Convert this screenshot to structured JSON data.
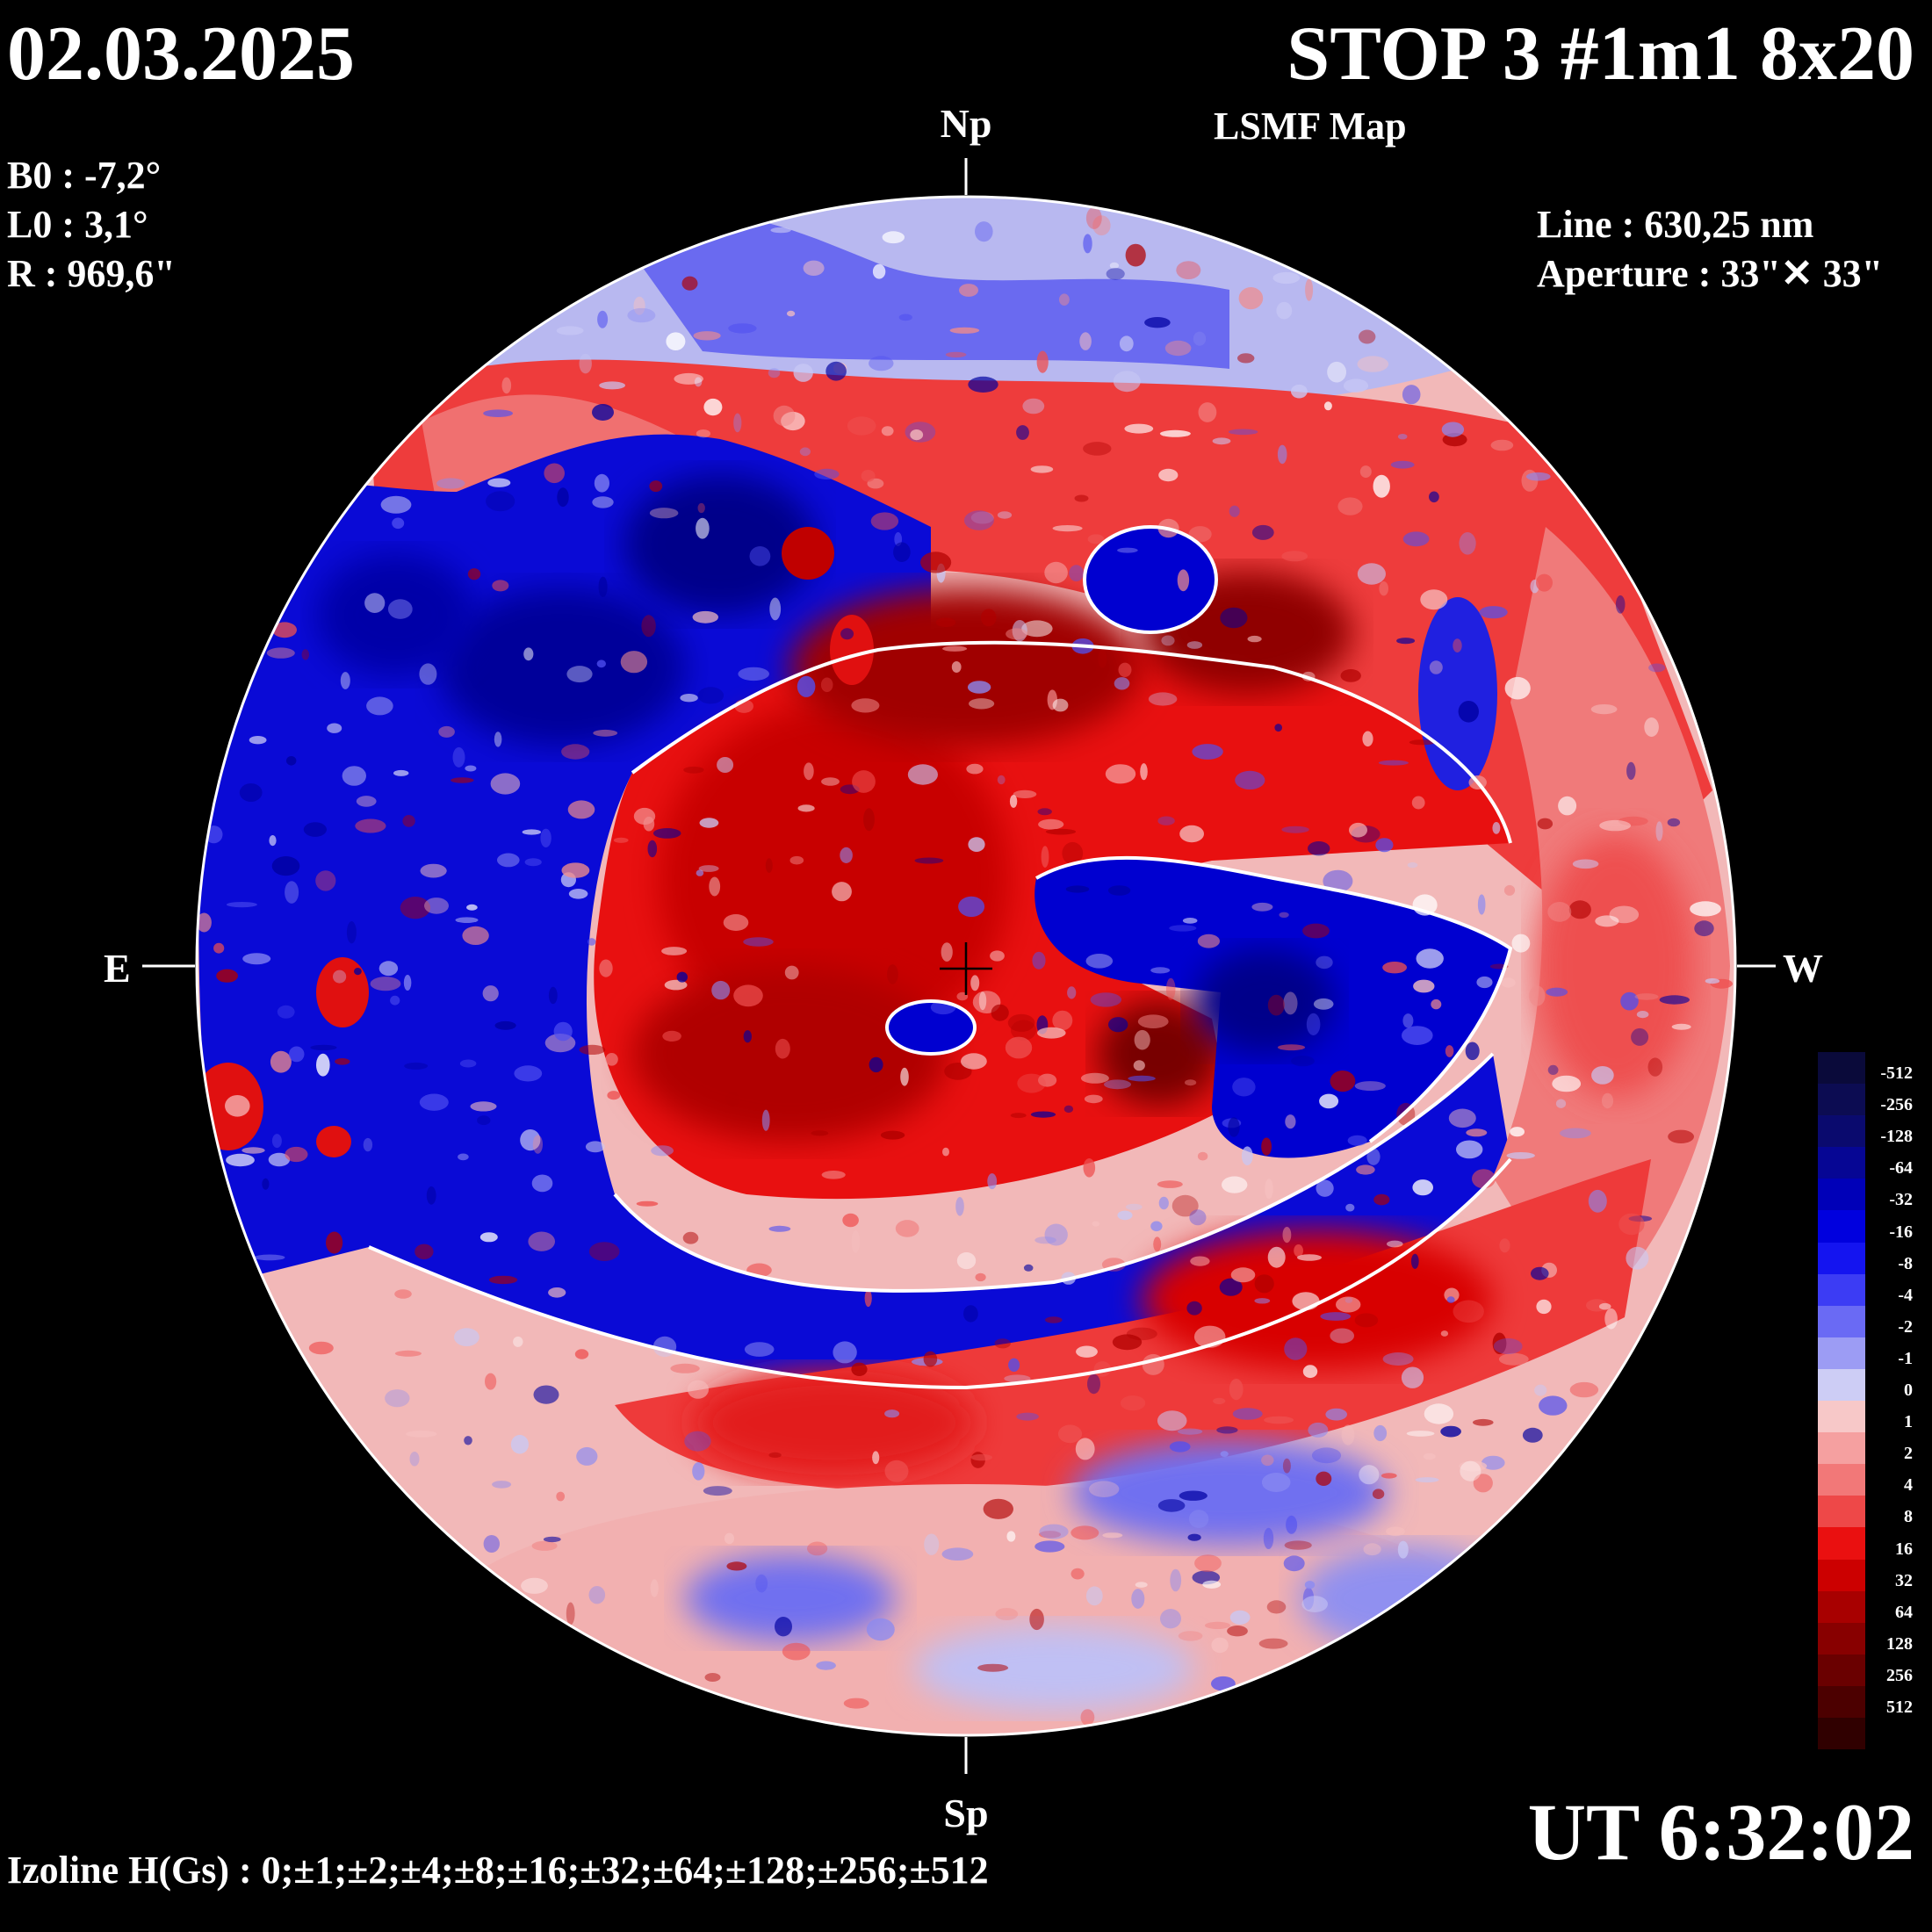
{
  "header": {
    "date": "02.03.2025",
    "title": "STOP 3 #1m1 8x20",
    "subtitle": "LSMF  Map"
  },
  "params": {
    "b0": "B0 : -7,2°",
    "l0": "L0 : 3,1°",
    "r": "R  : 969,6\"",
    "line": "Line :  630,25 nm",
    "aperture": "Aperture : 33\"✕ 33\""
  },
  "directions": {
    "north": "Np",
    "south": "Sp",
    "east": "E",
    "west": "W"
  },
  "time": "UT 6:32:02",
  "izoline": "Izoline H(Gs) : 0;±1;±2;±4;±8;±16;±32;±64;±128;±256;±512",
  "legend": {
    "labels": [
      "-512",
      "-256",
      "-128",
      "-64",
      "-32",
      "-16",
      "-8",
      "-4",
      "-2",
      "-1",
      "0",
      "1",
      "2",
      "4",
      "8",
      "16",
      "32",
      "64",
      "128",
      "256",
      "512"
    ],
    "colors": [
      "#0a0a3a",
      "#0c0c52",
      "#0a0a6e",
      "#060694",
      "#0000b8",
      "#0000de",
      "#1414f0",
      "#3c3cf4",
      "#6a6af4",
      "#9c9cf4",
      "#cdcdf5",
      "#f7c8c8",
      "#f5a0a0",
      "#f27878",
      "#ee4848",
      "#ea1010",
      "#cc0000",
      "#a80000",
      "#880000",
      "#6a0000",
      "#4c0000",
      "#300000"
    ]
  },
  "map": {
    "background_color": "#000000",
    "palette": {
      "blue_strong": "#0000c8",
      "blue_mid": "#3c3cf0",
      "blue_light": "#c8c8f5",
      "red_light": "#f5c0c0",
      "red_mid": "#ee4040",
      "red_strong": "#c80000",
      "red_deep": "#780000",
      "izoline": "#ffffff"
    }
  }
}
